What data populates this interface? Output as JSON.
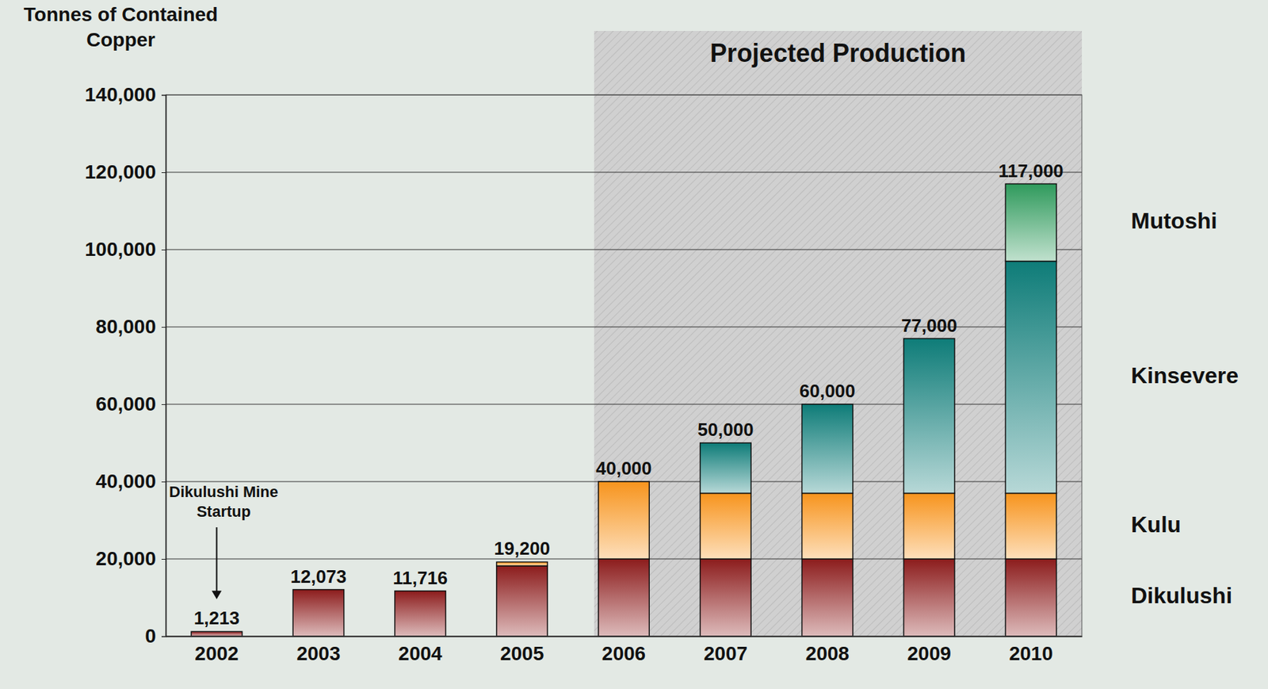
{
  "chart_data": {
    "type": "bar",
    "stacked": true,
    "y_label": "Tonnes of Contained Copper",
    "categories": [
      "2002",
      "2003",
      "2004",
      "2005",
      "2006",
      "2007",
      "2008",
      "2009",
      "2010"
    ],
    "series": [
      {
        "name": "Dikulushi",
        "color": "#8c1c1c",
        "values": [
          1213,
          12073,
          11716,
          18200,
          20000,
          20000,
          20000,
          20000,
          20000
        ]
      },
      {
        "name": "Kulu",
        "color": "#f7941d",
        "values": [
          0,
          0,
          0,
          1000,
          20000,
          17000,
          17000,
          17000,
          17000
        ]
      },
      {
        "name": "Kinsevere",
        "color": "#0e7c78",
        "values": [
          0,
          0,
          0,
          0,
          0,
          13000,
          23000,
          40000,
          60000
        ]
      },
      {
        "name": "Mutoshi",
        "color": "#2f9a5c",
        "values": [
          0,
          0,
          0,
          0,
          0,
          0,
          0,
          0,
          20000
        ]
      }
    ],
    "totals": [
      1213,
      12073,
      11716,
      19200,
      40000,
      50000,
      60000,
      77000,
      117000
    ],
    "total_labels": [
      "1,213",
      "12,073",
      "11,716",
      "19,200",
      "40,000",
      "50,000",
      "60,000",
      "77,000",
      "117,000"
    ],
    "ylim": [
      0,
      140000
    ],
    "yticks": [
      0,
      {
        "value": 20000,
        "label": "20,000"
      },
      {
        "value": 40000,
        "label": "40,000"
      },
      {
        "value": 60000,
        "label": "60,000"
      },
      {
        "value": 80000,
        "label": "80,000"
      },
      {
        "value": 100000,
        "label": "100,000"
      },
      {
        "value": 120000,
        "label": "120,000"
      },
      {
        "value": 140000,
        "label": "140,000"
      }
    ],
    "grid": true,
    "legend": "right",
    "annotations": [
      {
        "text": "Dikulushi Mine Startup",
        "category": "2002"
      }
    ],
    "projection": {
      "text": "Projected Production",
      "start": "2006"
    }
  }
}
